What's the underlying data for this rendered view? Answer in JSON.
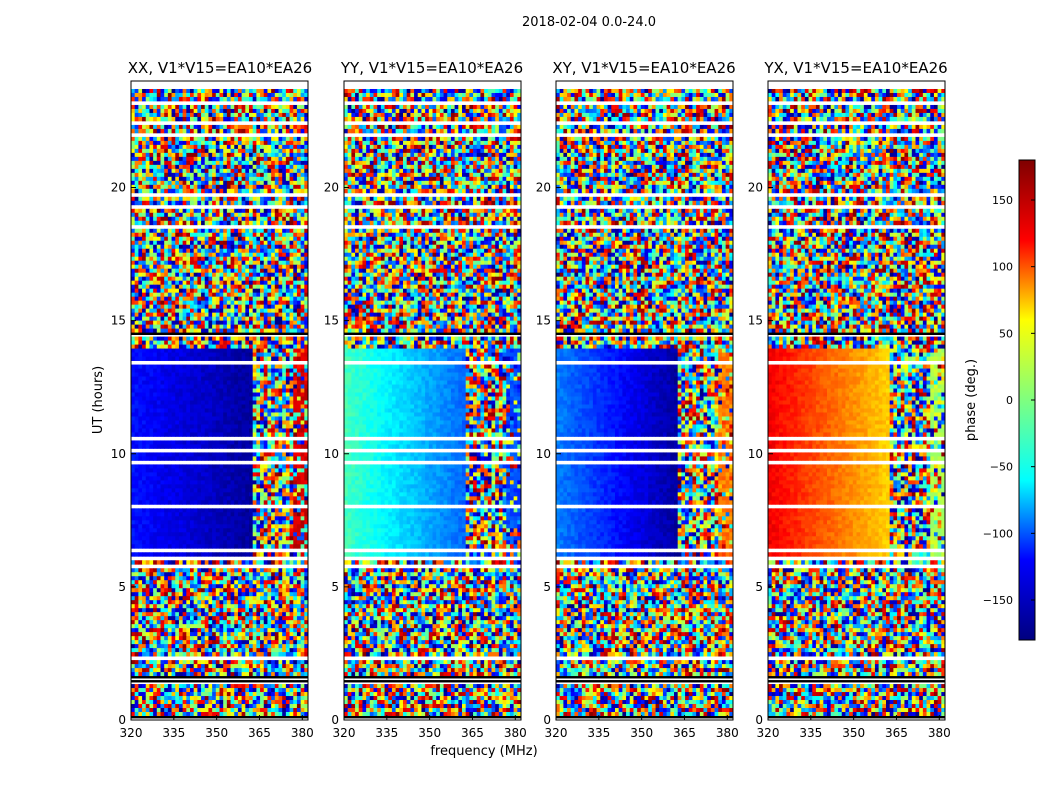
{
  "chart_data": {
    "type": "heatmap",
    "suptitle": "2018-02-04 0.0-24.0",
    "xlabel": "frequency (MHz)",
    "ylabel": "UT (hours)",
    "x_range": [
      320,
      382
    ],
    "y_range": [
      0,
      24
    ],
    "x_ticks": [
      320,
      335,
      350,
      365,
      380
    ],
    "y_ticks": [
      0,
      5,
      10,
      15,
      20
    ],
    "colorbar": {
      "label": "phase (deg.)",
      "range": [
        -180,
        180
      ],
      "ticks": [
        150,
        100,
        50,
        0,
        -50,
        -100,
        -150
      ],
      "tick_labels": [
        "150",
        "100",
        "50",
        "0",
        "−50",
        "−100",
        "−150"
      ],
      "colormap": "jet",
      "colormap_stops": [
        "#00007f",
        "#0000ff",
        "#00ffff",
        "#7fff7f",
        "#ffff00",
        "#ff0000",
        "#7f0000"
      ]
    },
    "panels": [
      {
        "title": "XX, V1*V15=EA10*EA26",
        "signal_phase_low_freq": -130,
        "signal_phase_high_freq": -170,
        "edge_phase": 150
      },
      {
        "title": "YY, V1*V15=EA10*EA26",
        "signal_phase_low_freq": -20,
        "signal_phase_high_freq": -100,
        "edge_phase": -110
      },
      {
        "title": "XY, V1*V15=EA10*EA26",
        "signal_phase_low_freq": -90,
        "signal_phase_high_freq": -170,
        "edge_phase": 90
      },
      {
        "title": "YX, V1*V15=EA10*EA26",
        "signal_phase_low_freq": 140,
        "signal_phase_high_freq": 60,
        "edge_phase": 20
      }
    ],
    "signal_window_ut": [
      6.0,
      14.0
    ],
    "signal_window_freq_max": 363
  }
}
